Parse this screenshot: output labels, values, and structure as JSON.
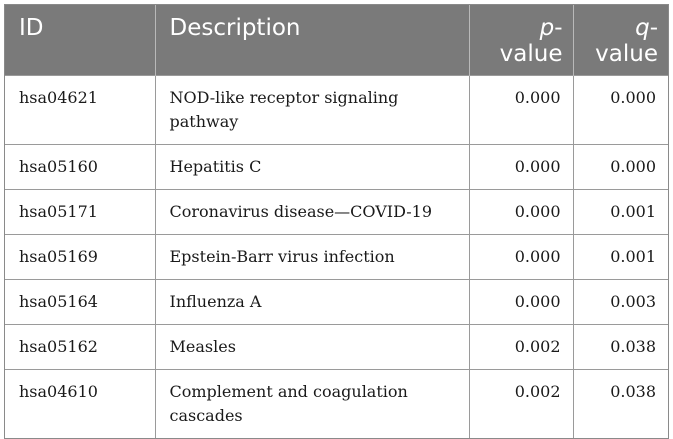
{
  "table": {
    "headers": {
      "id": "ID",
      "description": "Description",
      "p_value": [
        "p",
        "-value"
      ],
      "q_value": [
        "q",
        "-value"
      ]
    },
    "rows": [
      {
        "id": "hsa04621",
        "description": "NOD-like receptor signaling pathway",
        "p": "0.000",
        "q": "0.000"
      },
      {
        "id": "hsa05160",
        "description": "Hepatitis C",
        "p": "0.000",
        "q": "0.000"
      },
      {
        "id": "hsa05171",
        "description": "Coronavirus disease—COVID-19",
        "p": "0.000",
        "q": "0.001"
      },
      {
        "id": "hsa05169",
        "description": "Epstein-Barr virus infection",
        "p": "0.000",
        "q": "0.001"
      },
      {
        "id": "hsa05164",
        "description": "Influenza A",
        "p": "0.000",
        "q": "0.003"
      },
      {
        "id": "hsa05162",
        "description": "Measles",
        "p": "0.002",
        "q": "0.038"
      },
      {
        "id": "hsa04610",
        "description": "Complement and coagulation cascades",
        "p": "0.002",
        "q": "0.038"
      }
    ]
  }
}
